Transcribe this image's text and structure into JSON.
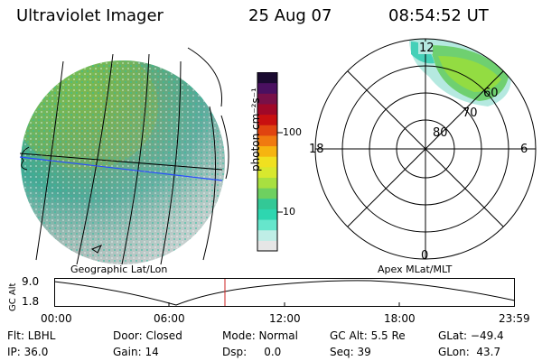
{
  "header": {
    "title": "Ultraviolet Imager",
    "date": "25 Aug 07",
    "time": "08:54:52 UT"
  },
  "colorbar": {
    "unit_label": "photon cm⁻²s⁻¹",
    "ticks": [
      "100",
      "10"
    ],
    "colors": [
      "#e6e6e6",
      "#bfeee6",
      "#66e6cc",
      "#2ed6b0",
      "#33c896",
      "#6ed060",
      "#a8e040",
      "#d8e82e",
      "#f0e020",
      "#f6b410",
      "#f07a10",
      "#e04410",
      "#c81010",
      "#a00828",
      "#781048",
      "#4a1060",
      "#1a0a30"
    ]
  },
  "left_panel": {
    "label": "Geographic Lat/Lon"
  },
  "right_panel": {
    "label": "Apex MLat/MLT",
    "lat_labels": [
      "80",
      "70",
      "60"
    ],
    "mlt_labels": [
      "12",
      "18",
      "6",
      "0"
    ]
  },
  "timeline": {
    "y_label": "GC Alt",
    "y_ticks": [
      "9.0",
      "1.8"
    ],
    "x_ticks": [
      "00:00",
      "06:00",
      "12:00",
      "18:00",
      "23:59"
    ],
    "cursor_color": "#cc2222"
  },
  "info": {
    "rows": [
      [
        "Flt: LBHL",
        "Door: Closed",
        "Mode: Normal",
        "GC Alt: 5.5 Re",
        "GLat: −49.4"
      ],
      [
        "IP: 36.0",
        "Gain: 14",
        "Dsp:     0.0",
        "Seq: 39",
        "GLon:  43.7"
      ]
    ]
  }
}
